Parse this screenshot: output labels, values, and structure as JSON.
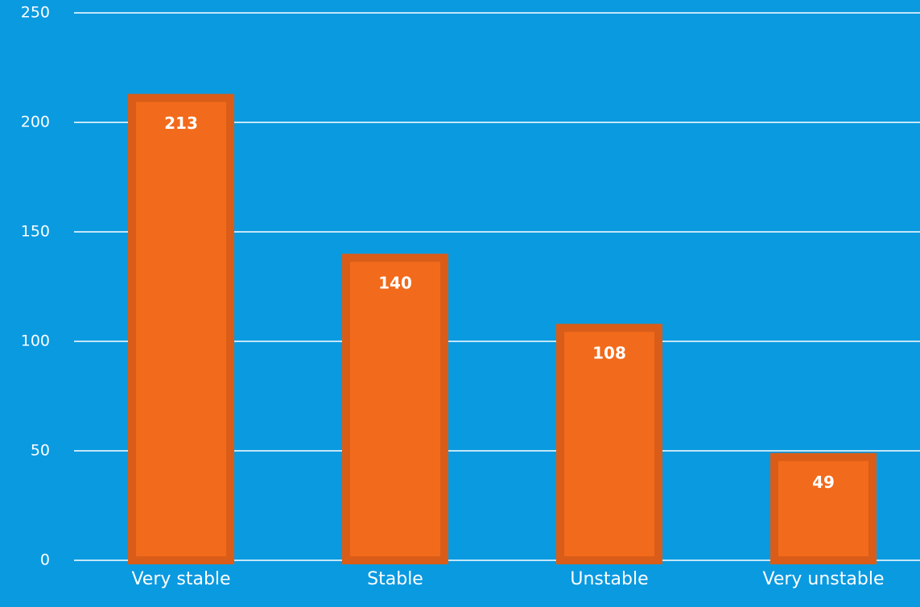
{
  "chart_data": {
    "type": "bar",
    "categories": [
      "Very stable",
      "Stable",
      "Unstable",
      "Very unstable"
    ],
    "values": [
      213,
      140,
      108,
      49
    ],
    "color": "#f26a1b",
    "ylim": [
      0,
      250
    ],
    "yticks": [
      0,
      50,
      100,
      150,
      200,
      250
    ],
    "grid": true
  }
}
